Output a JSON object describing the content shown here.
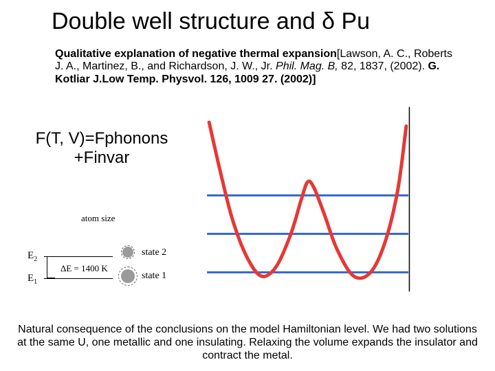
{
  "title": "Double well structure and δ Pu",
  "citation": {
    "lead": "Qualitative explanation of negative thermal expansion",
    "rest_html": "[Lawson, A. C., Roberts J. A., Martinez, B., and Richardson, J. W., Jr. <i>Phil. Mag. B,</i> 82, 1837, (2002). <b>G. Kotliar J.Low Temp. Physvol. 126, 1009 27. (2002)]</b>"
  },
  "formula_line1": "F(T, V)=Fphonons",
  "formula_line2": "+Finvar",
  "conclusion": "Natural consequence of the conclusions on the model Hamiltonian level. We had two solutions at the same U, one metallic and one insulating. Relaxing the volume expands the insulator and contract the metal.",
  "levels": {
    "atom_size_label": "atom size",
    "E2_label": "E",
    "E2_sub": "2",
    "E1_label": "E",
    "E1_sub": "1",
    "deltaE": "ΔE = 1400 K",
    "state2_label": "state 2",
    "state1_label": "state 1",
    "circle_fill": "#9a9a9a",
    "circle_dash": "#606060"
  },
  "well": {
    "type": "infographic",
    "curve_color": "#e53935",
    "curve_width": 5,
    "level_color": "#3366cc",
    "level_width": 3,
    "axis_color": "#000000",
    "background_color": "#ffffff",
    "curve_points": [
      [
        0.03,
        0.1
      ],
      [
        0.08,
        0.34
      ],
      [
        0.14,
        0.6
      ],
      [
        0.21,
        0.8
      ],
      [
        0.28,
        0.9
      ],
      [
        0.35,
        0.85
      ],
      [
        0.42,
        0.68
      ],
      [
        0.47,
        0.5
      ],
      [
        0.5,
        0.41
      ],
      [
        0.53,
        0.44
      ],
      [
        0.58,
        0.58
      ],
      [
        0.64,
        0.76
      ],
      [
        0.72,
        0.9
      ],
      [
        0.8,
        0.88
      ],
      [
        0.87,
        0.72
      ],
      [
        0.93,
        0.45
      ],
      [
        0.97,
        0.12
      ]
    ],
    "levels_y": [
      0.88,
      0.68,
      0.48
    ],
    "levels_x": [
      0.02,
      0.98
    ]
  }
}
